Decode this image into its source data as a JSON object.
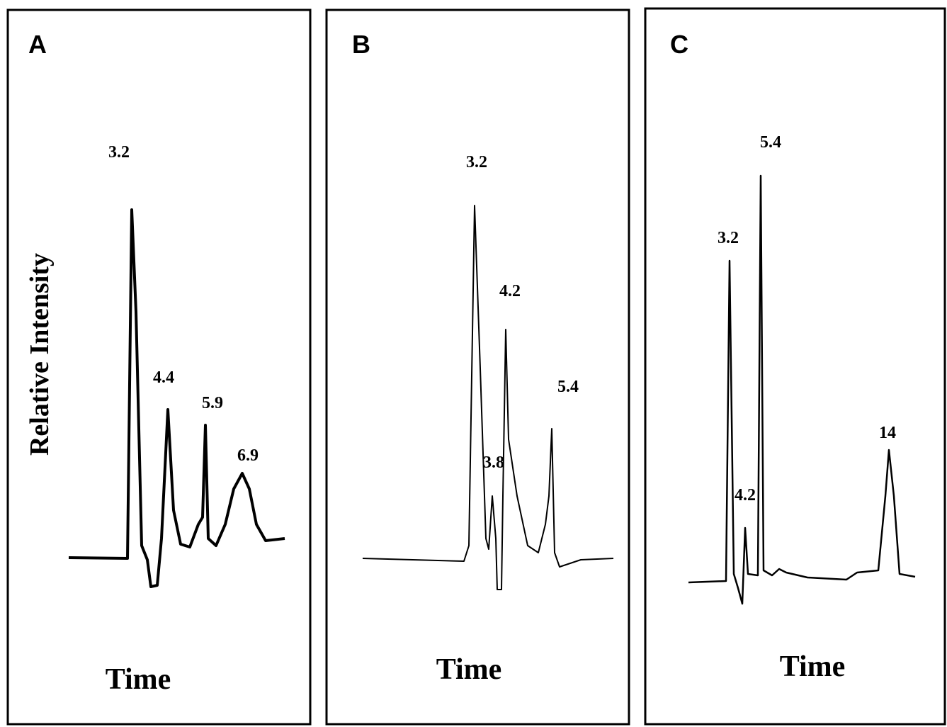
{
  "panels": [
    {
      "label": "A",
      "y_label": "Relative Intensity",
      "x_label": "Time",
      "peaks": [
        3.2,
        4.4,
        5.9,
        6.9
      ]
    },
    {
      "label": "B",
      "x_label": "Time",
      "peaks": [
        3.2,
        3.8,
        4.2,
        5.4
      ]
    },
    {
      "label": "C",
      "x_label": "Time",
      "peaks": [
        3.2,
        4.2,
        5.4,
        14
      ]
    }
  ]
}
